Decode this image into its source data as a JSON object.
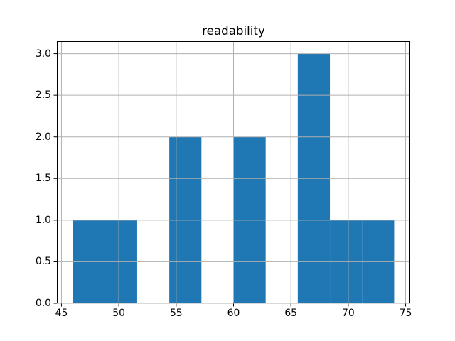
{
  "figure": {
    "background": "#ffffff"
  },
  "chart_data": {
    "type": "bar",
    "subtype": "histogram",
    "title": "readability",
    "xlabel": "",
    "ylabel": "",
    "bin_edges": [
      46,
      48.8,
      51.6,
      54.4,
      57.2,
      60,
      62.8,
      65.6,
      68.4,
      71.2,
      74
    ],
    "counts": [
      1,
      1,
      0,
      2,
      0,
      2,
      0,
      3,
      1,
      1
    ],
    "xlim": [
      44.6,
      75.4
    ],
    "ylim": [
      0,
      3.15
    ],
    "xticks": [
      45,
      50,
      55,
      60,
      65,
      70,
      75
    ],
    "xtick_labels": [
      "45",
      "50",
      "55",
      "60",
      "65",
      "70",
      "75"
    ],
    "yticks": [
      0,
      0.5,
      1,
      1.5,
      2,
      2.5,
      3
    ],
    "ytick_labels": [
      "0.0",
      "0.5",
      "1.0",
      "1.5",
      "2.0",
      "2.5",
      "3.0"
    ],
    "grid": true,
    "grid_on_top_of_bars": true,
    "legend": null,
    "bar_color": "#1f77b4",
    "grid_color": "#b0b0b0",
    "spine_color": "#000000",
    "text_color": "#000000"
  }
}
